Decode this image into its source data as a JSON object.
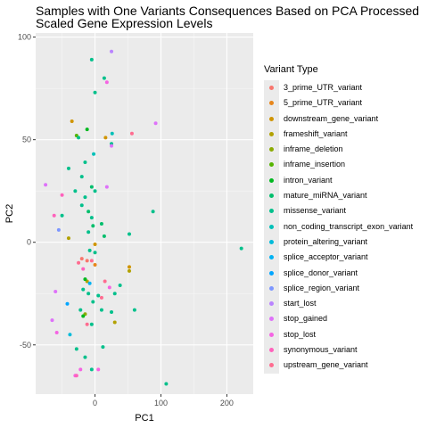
{
  "chart_data": {
    "type": "scatter",
    "title": "Samples with One Variants Consequences Based on PCA Processed Scaled Gene Expression Levels",
    "title_lines": [
      "Samples with One Variants Consequences Based on PCA Processed",
      "Scaled Gene Expression Levels"
    ],
    "xlabel": "PC1",
    "ylabel": "PC2",
    "xlim": [
      -90,
      240
    ],
    "ylim": [
      -74,
      102
    ],
    "xticks": [
      0,
      100,
      200
    ],
    "yticks": [
      -50,
      0,
      50,
      100
    ],
    "xtick_labels": [
      "0",
      "100",
      "200"
    ],
    "ytick_labels": [
      "-50",
      "0",
      "50",
      "100"
    ],
    "grid": true,
    "legend_position": "right",
    "legend_title": "Variant Type",
    "series": [
      {
        "name": "3_prime_UTR_variant",
        "color": "#F8766D",
        "points": [
          [
            -20,
            -8
          ],
          [
            -12,
            -9
          ]
        ]
      },
      {
        "name": "5_prime_UTR_variant",
        "color": "#E7861B",
        "points": [
          [
            0,
            -11
          ]
        ]
      },
      {
        "name": "downstream_gene_variant",
        "color": "#D09400",
        "points": [
          [
            -35,
            59
          ],
          [
            16,
            51
          ],
          [
            0,
            -1
          ],
          [
            52,
            -12
          ]
        ]
      },
      {
        "name": "frameshift_variant",
        "color": "#B2A100",
        "points": [
          [
            -40,
            2
          ],
          [
            -12,
            -19
          ],
          [
            30,
            -39
          ],
          [
            52,
            -14
          ]
        ]
      },
      {
        "name": "inframe_deletion",
        "color": "#8BAB00",
        "points": [
          [
            -15,
            -35
          ]
        ]
      },
      {
        "name": "inframe_insertion",
        "color": "#55B400",
        "points": [
          [
            -28,
            52
          ]
        ]
      },
      {
        "name": "intron_variant",
        "color": "#00B81F",
        "points": [
          [
            -12,
            55
          ],
          [
            -15,
            -18
          ],
          [
            -18,
            -36
          ]
        ]
      },
      {
        "name": "mature_miRNA_variant",
        "color": "#00BE6C",
        "points": [
          [
            -5,
            27
          ],
          [
            -10,
            15
          ],
          [
            -3,
            8
          ],
          [
            10,
            9
          ],
          [
            14,
            3
          ]
        ]
      },
      {
        "name": "missense_variant",
        "color": "#00C08B",
        "points": [
          [
            -5,
            89
          ],
          [
            0,
            73
          ],
          [
            14,
            80
          ],
          [
            -25,
            51
          ],
          [
            25,
            48
          ],
          [
            -40,
            36
          ],
          [
            -20,
            32
          ],
          [
            -15,
            39
          ],
          [
            -20,
            18
          ],
          [
            0,
            25
          ],
          [
            -10,
            5
          ],
          [
            -5,
            12
          ],
          [
            -8,
            -4
          ],
          [
            0,
            -5
          ],
          [
            -18,
            -23
          ],
          [
            -10,
            -25
          ],
          [
            -22,
            -33
          ],
          [
            -3,
            -29
          ],
          [
            5,
            -26
          ],
          [
            10,
            -33
          ],
          [
            38,
            -21
          ],
          [
            -5,
            -40
          ],
          [
            -28,
            -52
          ],
          [
            -15,
            -56
          ],
          [
            -5,
            -62
          ],
          [
            12,
            -51
          ],
          [
            25,
            -34
          ],
          [
            30,
            -25
          ],
          [
            52,
            4
          ],
          [
            60,
            -33
          ],
          [
            88,
            15
          ],
          [
            108,
            -69
          ],
          [
            222,
            -3
          ],
          [
            -50,
            13
          ],
          [
            -30,
            25
          ],
          [
            -15,
            22
          ]
        ]
      },
      {
        "name": "non_coding_transcript_exon_variant",
        "color": "#00C0B8",
        "points": [
          [
            -2,
            43
          ],
          [
            26,
            53
          ]
        ]
      },
      {
        "name": "protein_altering_variant",
        "color": "#00BBDA",
        "points": [
          [
            -38,
            -45
          ]
        ]
      },
      {
        "name": "splice_acceptor_variant",
        "color": "#00B2F3",
        "points": [
          [
            -8,
            -20
          ]
        ]
      },
      {
        "name": "splice_donor_variant",
        "color": "#00A5FF",
        "points": [
          [
            -42,
            -30
          ]
        ]
      },
      {
        "name": "splice_region_variant",
        "color": "#7C96FF",
        "points": [
          [
            -55,
            6
          ]
        ]
      },
      {
        "name": "start_lost",
        "color": "#B983FF",
        "points": [
          [
            25,
            93
          ]
        ]
      },
      {
        "name": "stop_gained",
        "color": "#DE71F9",
        "points": [
          [
            -75,
            28
          ],
          [
            92,
            58
          ],
          [
            18,
            27
          ],
          [
            25,
            47
          ],
          [
            -65,
            -38
          ],
          [
            -60,
            -24
          ]
        ]
      },
      {
        "name": "stop_lost",
        "color": "#F564E3",
        "points": [
          [
            18,
            78
          ],
          [
            5,
            -62
          ],
          [
            22,
            -22
          ],
          [
            -22,
            -62
          ],
          [
            -30,
            -65
          ],
          [
            -58,
            -44
          ]
        ]
      },
      {
        "name": "synonymous_variant",
        "color": "#FF62BC",
        "points": [
          [
            -62,
            13
          ],
          [
            -50,
            23
          ],
          [
            -18,
            -13
          ],
          [
            -28,
            -65
          ]
        ]
      },
      {
        "name": "upstream_gene_variant",
        "color": "#FF6C90",
        "points": [
          [
            56,
            53
          ],
          [
            -25,
            -10
          ],
          [
            -5,
            -9
          ],
          [
            10,
            -27
          ],
          [
            15,
            -19
          ],
          [
            -12,
            -40
          ]
        ]
      }
    ]
  }
}
